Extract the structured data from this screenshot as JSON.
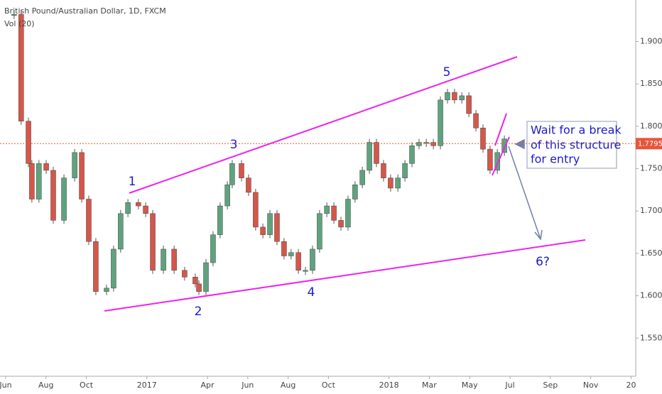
{
  "chart_data": {
    "type": "candlestick",
    "title": "British Pound/Australian Dollar, 1D, FXCM",
    "subtitle": "Vol (20)",
    "x": [
      0.42,
      0.77,
      1.13,
      1.3,
      1.65,
      2.01,
      2.36,
      2.89,
      3.42,
      3.77,
      4.12,
      4.47,
      5.0,
      5.35,
      5.7,
      6.06,
      6.58,
      6.94,
      7.29,
      7.82,
      8.35,
      8.87,
      9.4,
      9.58,
      9.93,
      10.28,
      10.63,
      10.99,
      11.23,
      11.69,
      12.04,
      12.39,
      12.75,
      13.1,
      13.45,
      13.8,
      14.15,
      14.51,
      14.86,
      15.21,
      15.56,
      15.92,
      16.27,
      16.62,
      16.97,
      17.32,
      17.68,
      18.03,
      18.38,
      18.73,
      19.08,
      19.44,
      19.79,
      20.14,
      20.49,
      20.85,
      21.2,
      21.55,
      21.9,
      22.25,
      22.61,
      22.96,
      23.31,
      23.66,
      24.01,
      24.37,
      24.72
    ],
    "series": [
      {
        "name": "GBPAUD",
        "color": "#5fa37e",
        "down_color": "#d4574a",
        "values": [
          1.932,
          1.806,
          1.756,
          1.714,
          1.756,
          1.748,
          1.689,
          1.739,
          1.769,
          1.714,
          1.664,
          1.605,
          1.609,
          1.655,
          1.697,
          1.71,
          1.706,
          1.697,
          1.63,
          1.655,
          1.63,
          1.622,
          1.614,
          1.605,
          1.639,
          1.672,
          1.706,
          1.731,
          1.756,
          1.739,
          1.722,
          1.681,
          1.672,
          1.697,
          1.664,
          1.647,
          1.651,
          1.63,
          1.63,
          1.655,
          1.697,
          1.706,
          1.689,
          1.681,
          1.714,
          1.731,
          1.748,
          1.781,
          1.756,
          1.739,
          1.727,
          1.739,
          1.756,
          1.777,
          1.781,
          1.781,
          1.777,
          1.831,
          1.84,
          1.831,
          1.836,
          1.815,
          1.798,
          1.773,
          1.748,
          1.769,
          1.785
        ]
      }
    ],
    "last_price": 1.77952,
    "xlim": [
      -0.28,
      31.23
    ],
    "xticks": [
      {
        "value": 0,
        "label": "Jun"
      },
      {
        "value": 2,
        "label": "Aug"
      },
      {
        "value": 4,
        "label": "Oct"
      },
      {
        "value": 7,
        "label": "2017"
      },
      {
        "value": 10,
        "label": "Apr"
      },
      {
        "value": 12,
        "label": "Jun"
      },
      {
        "value": 14,
        "label": "Aug"
      },
      {
        "value": 16,
        "label": "Oct"
      },
      {
        "value": 19,
        "label": "2018"
      },
      {
        "value": 21,
        "label": "Mar"
      },
      {
        "value": 23,
        "label": "May"
      },
      {
        "value": 25,
        "label": "Jul"
      },
      {
        "value": 27,
        "label": "Sep"
      },
      {
        "value": 29,
        "label": "Nov"
      },
      {
        "value": 31,
        "label": "20"
      }
    ],
    "ylim": [
      1.505,
      1.949
    ],
    "yticks": [
      {
        "value": 1.55,
        "label": "1.55000"
      },
      {
        "value": 1.6,
        "label": "1.60000"
      },
      {
        "value": 1.65,
        "label": "1.65000"
      },
      {
        "value": 1.7,
        "label": "1.70000"
      },
      {
        "value": 1.75,
        "label": "1.75000"
      },
      {
        "value": 1.8,
        "label": "1.80000"
      },
      {
        "value": 1.85,
        "label": "1.85000"
      },
      {
        "value": 1.9,
        "label": "1.90000"
      }
    ],
    "annotations": {
      "waves": [
        "1",
        "2",
        "3",
        "4",
        "5",
        "6?"
      ],
      "note": [
        "Wait for a break",
        "of this structure",
        "for entry"
      ]
    }
  }
}
